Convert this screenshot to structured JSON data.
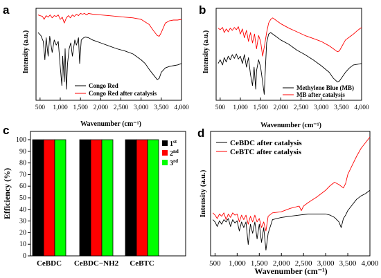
{
  "colors": {
    "black": "#000000",
    "red": "#ff0000",
    "green": "#00ff00",
    "axis": "#000000"
  },
  "chart_data": [
    {
      "panel": "a",
      "type": "line",
      "xlabel": "Wavenumber (cm⁻¹)",
      "ylabel": "Intensity (a.u.)",
      "xlim": [
        400,
        4000
      ],
      "xticks": [
        500,
        1000,
        1500,
        2000,
        2500,
        3000,
        3500,
        4000
      ],
      "xtick_labels": [
        "500",
        "1,000",
        "1,500",
        "2,000",
        "2,500",
        "3,000",
        "3,500",
        "4,000"
      ],
      "legend_position": "bottom-right",
      "series": [
        {
          "name": "Congo Red",
          "color": "#000000",
          "x": [
            450,
            520,
            580,
            620,
            650,
            700,
            740,
            800,
            850,
            900,
            950,
            1000,
            1040,
            1060,
            1100,
            1120,
            1150,
            1180,
            1220,
            1260,
            1300,
            1360,
            1400,
            1450,
            1480,
            1520,
            1580,
            1620,
            1700,
            1800,
            1900,
            2000,
            2200,
            2400,
            2600,
            2800,
            3000,
            3100,
            3200,
            3300,
            3400,
            3450,
            3500,
            3600,
            3700,
            3800,
            3900,
            4000
          ],
          "y": [
            0.92,
            0.88,
            0.8,
            0.55,
            0.85,
            0.6,
            0.87,
            0.65,
            0.82,
            0.75,
            0.8,
            0.45,
            0.2,
            0.6,
            0.25,
            0.7,
            0.15,
            0.5,
            0.7,
            0.78,
            0.6,
            0.82,
            0.75,
            0.85,
            0.5,
            0.82,
            0.85,
            0.86,
            0.85,
            0.82,
            0.8,
            0.78,
            0.74,
            0.7,
            0.67,
            0.63,
            0.55,
            0.5,
            0.42,
            0.35,
            0.28,
            0.3,
            0.38,
            0.44,
            0.46,
            0.47,
            0.48,
            0.5
          ]
        },
        {
          "name": "Congo Red after catalysis",
          "color": "#ff0000",
          "x": [
            450,
            500,
            560,
            600,
            650,
            700,
            750,
            800,
            850,
            900,
            950,
            1000,
            1050,
            1100,
            1150,
            1200,
            1250,
            1300,
            1350,
            1400,
            1450,
            1500,
            1550,
            1600,
            1650,
            1700,
            1800,
            2000,
            2200,
            2400,
            2600,
            2800,
            3000,
            3200,
            3300,
            3400,
            3450,
            3500,
            3600,
            3700,
            3800,
            3900,
            4000
          ],
          "y": [
            1.16,
            1.15,
            1.14,
            1.1,
            1.15,
            1.13,
            1.16,
            1.12,
            1.15,
            1.14,
            1.16,
            1.1,
            1.13,
            1.05,
            1.12,
            1.15,
            1.12,
            1.16,
            1.14,
            1.17,
            1.15,
            1.18,
            1.17,
            1.18,
            1.16,
            1.18,
            1.17,
            1.16,
            1.15,
            1.14,
            1.13,
            1.12,
            1.1,
            1.03,
            0.95,
            0.88,
            0.87,
            0.92,
            1.05,
            1.08,
            1.09,
            1.09,
            1.1
          ]
        }
      ]
    },
    {
      "panel": "b",
      "type": "line",
      "xlabel": "Wavenumber (cm⁻¹)",
      "ylabel": "Intensity (a.u.)",
      "xlim": [
        400,
        4000
      ],
      "xticks": [
        500,
        1000,
        1500,
        2000,
        2500,
        3000,
        3500,
        4000
      ],
      "xtick_labels": [
        "500",
        "1,000",
        "1,500",
        "2,000",
        "2,500",
        "3,000",
        "3,500",
        "4,000"
      ],
      "legend_position": "bottom-right",
      "series": [
        {
          "name": "Methylene Blue (MB)",
          "color": "#000000",
          "x": [
            450,
            500,
            560,
            600,
            650,
            700,
            750,
            800,
            850,
            900,
            950,
            1000,
            1050,
            1100,
            1150,
            1200,
            1250,
            1300,
            1340,
            1380,
            1400,
            1450,
            1500,
            1550,
            1590,
            1620,
            1650,
            1700,
            1750,
            1800,
            1900,
            2000,
            2200,
            2400,
            2600,
            2800,
            3000,
            3200,
            3300,
            3400,
            3450,
            3500,
            3600,
            3700,
            3800,
            3900,
            4000
          ],
          "y": [
            0.5,
            0.55,
            0.48,
            0.58,
            0.52,
            0.6,
            0.55,
            0.62,
            0.57,
            0.63,
            0.56,
            0.6,
            0.5,
            0.62,
            0.45,
            0.58,
            0.35,
            0.2,
            0.45,
            0.15,
            0.4,
            0.55,
            0.45,
            0.25,
            0.08,
            0.45,
            0.78,
            0.9,
            0.92,
            0.9,
            0.86,
            0.82,
            0.76,
            0.68,
            0.62,
            0.55,
            0.47,
            0.38,
            0.3,
            0.25,
            0.26,
            0.3,
            0.38,
            0.44,
            0.48,
            0.49,
            0.5
          ]
        },
        {
          "name": "MB after catalysis",
          "color": "#ff0000",
          "x": [
            450,
            500,
            560,
            600,
            650,
            700,
            750,
            800,
            850,
            900,
            950,
            1000,
            1050,
            1100,
            1150,
            1200,
            1250,
            1300,
            1350,
            1400,
            1450,
            1500,
            1550,
            1600,
            1650,
            1700,
            1750,
            1800,
            1850,
            1900,
            2000,
            2200,
            2400,
            2600,
            2800,
            3000,
            3200,
            3300,
            3400,
            3450,
            3500,
            3600,
            3700,
            3800,
            3900,
            4000
          ],
          "y": [
            0.98,
            0.96,
            0.99,
            0.92,
            0.97,
            0.93,
            0.98,
            0.95,
            0.99,
            0.96,
            1.0,
            0.9,
            0.97,
            0.85,
            0.95,
            0.8,
            0.92,
            0.78,
            0.9,
            0.7,
            0.88,
            0.8,
            0.6,
            0.75,
            0.92,
            1.05,
            1.1,
            1.12,
            1.1,
            1.08,
            1.04,
            0.98,
            0.93,
            0.88,
            0.84,
            0.8,
            0.74,
            0.7,
            0.66,
            0.67,
            0.72,
            0.82,
            0.86,
            0.9,
            0.95,
            0.99
          ]
        }
      ]
    },
    {
      "panel": "c",
      "type": "bar",
      "xlabel": "",
      "ylabel": "Efficiency (%)",
      "ylim": [
        0,
        100
      ],
      "yticks": [
        0,
        10,
        20,
        30,
        40,
        50,
        60,
        70,
        80,
        90,
        100
      ],
      "categories": [
        "CeBDC",
        "CeBDC−NH2",
        "CeBTC"
      ],
      "legend_position": "top-right",
      "series": [
        {
          "name": "1",
          "sup": "st",
          "color": "#000000",
          "values": [
            100,
            100,
            100
          ]
        },
        {
          "name": "2",
          "sup": "nd",
          "color": "#ff0000",
          "values": [
            100,
            100,
            100
          ]
        },
        {
          "name": "3",
          "sup": "rd",
          "color": "#00ff00",
          "values": [
            100,
            100,
            100
          ]
        }
      ]
    },
    {
      "panel": "d",
      "type": "line",
      "xlabel": "Wavenumber (cm⁻¹)",
      "ylabel": "Intensity (a.u.)",
      "xlim": [
        400,
        4000
      ],
      "xticks": [
        500,
        1000,
        1500,
        2000,
        2500,
        3000,
        3500,
        4000
      ],
      "xtick_labels": [
        "500",
        "1,000",
        "1,500",
        "2,000",
        "2,500",
        "3,000",
        "3,500",
        "4,000"
      ],
      "legend_position": "top-left",
      "series": [
        {
          "name": "CeBDC after catalysis",
          "color": "#000000",
          "x": [
            450,
            500,
            550,
            600,
            650,
            700,
            750,
            800,
            850,
            900,
            950,
            1000,
            1050,
            1100,
            1150,
            1200,
            1250,
            1300,
            1350,
            1400,
            1450,
            1500,
            1550,
            1600,
            1650,
            1700,
            1800,
            2000,
            2200,
            2400,
            2600,
            2800,
            3000,
            3100,
            3200,
            3300,
            3350,
            3400,
            3450,
            3500,
            3600,
            3700,
            3800,
            3900,
            4000
          ],
          "y": [
            0.32,
            0.3,
            0.26,
            0.31,
            0.28,
            0.32,
            0.3,
            0.33,
            0.26,
            0.32,
            0.29,
            0.31,
            0.22,
            0.3,
            0.25,
            0.3,
            0.1,
            0.28,
            0.2,
            0.3,
            0.15,
            0.28,
            0.12,
            0.25,
            0.05,
            0.2,
            0.32,
            0.34,
            0.35,
            0.36,
            0.37,
            0.37,
            0.37,
            0.36,
            0.34,
            0.3,
            0.25,
            0.33,
            0.36,
            0.4,
            0.45,
            0.5,
            0.53,
            0.55,
            0.58
          ]
        },
        {
          "name": "CeBTC after catalysis",
          "color": "#ff0000",
          "x": [
            450,
            500,
            550,
            600,
            650,
            700,
            750,
            800,
            850,
            900,
            950,
            1000,
            1050,
            1100,
            1150,
            1200,
            1250,
            1300,
            1350,
            1400,
            1450,
            1500,
            1550,
            1600,
            1650,
            1700,
            1800,
            2000,
            2200,
            2400,
            2450,
            2500,
            2600,
            2800,
            3000,
            3100,
            3200,
            3300,
            3400,
            3450,
            3500,
            3600,
            3700,
            3800,
            3900,
            4000
          ],
          "y": [
            0.38,
            0.36,
            0.33,
            0.37,
            0.35,
            0.38,
            0.32,
            0.37,
            0.34,
            0.38,
            0.36,
            0.37,
            0.3,
            0.36,
            0.32,
            0.36,
            0.28,
            0.35,
            0.3,
            0.36,
            0.3,
            0.33,
            0.25,
            0.3,
            0.22,
            0.35,
            0.38,
            0.39,
            0.42,
            0.44,
            0.4,
            0.44,
            0.47,
            0.52,
            0.58,
            0.62,
            0.65,
            0.63,
            0.6,
            0.64,
            0.72,
            0.8,
            0.88,
            0.95,
            1.0,
            1.05
          ]
        }
      ]
    }
  ]
}
